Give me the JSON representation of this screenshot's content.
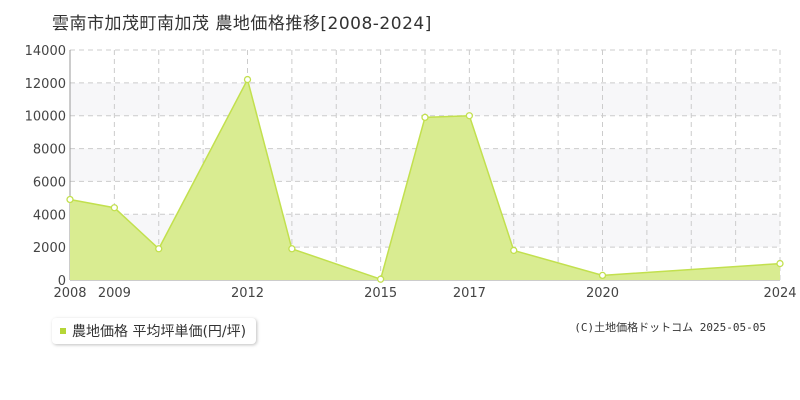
{
  "title": "雲南市加茂町南加茂 農地価格推移[2008-2024]",
  "legend_label": "農地価格 平均坪単価(円/坪)",
  "copyright": "(C)土地価格ドットコム 2025-05-05",
  "colors": {
    "fill": "#d9ec91",
    "line": "#c2e04e",
    "point_fill": "#ffffff",
    "grid": "#cccccc",
    "plot_bg": "#f7f7f9",
    "legend_swatch": "#b5d637"
  },
  "chart_data": {
    "type": "area",
    "x": [
      2008,
      2009,
      2010,
      2012,
      2013,
      2015,
      2016,
      2017,
      2018,
      2020,
      2024
    ],
    "values": [
      4900,
      4400,
      1900,
      12200,
      1900,
      50,
      9900,
      10000,
      1800,
      280,
      1000
    ],
    "xlim": [
      2008,
      2024
    ],
    "ylim": [
      0,
      14000
    ],
    "yticks": [
      0,
      2000,
      4000,
      6000,
      8000,
      10000,
      12000,
      14000
    ],
    "xtick_labels": [
      {
        "value": 2008,
        "label": "2008"
      },
      {
        "value": 2009,
        "label": "2009"
      },
      {
        "value": 2012,
        "label": "2012"
      },
      {
        "value": 2015,
        "label": "2015"
      },
      {
        "value": 2017,
        "label": "2017"
      },
      {
        "value": 2020,
        "label": "2020"
      },
      {
        "value": 2024,
        "label": "2024"
      }
    ],
    "grid": true,
    "legend_position": "bottom-left"
  }
}
